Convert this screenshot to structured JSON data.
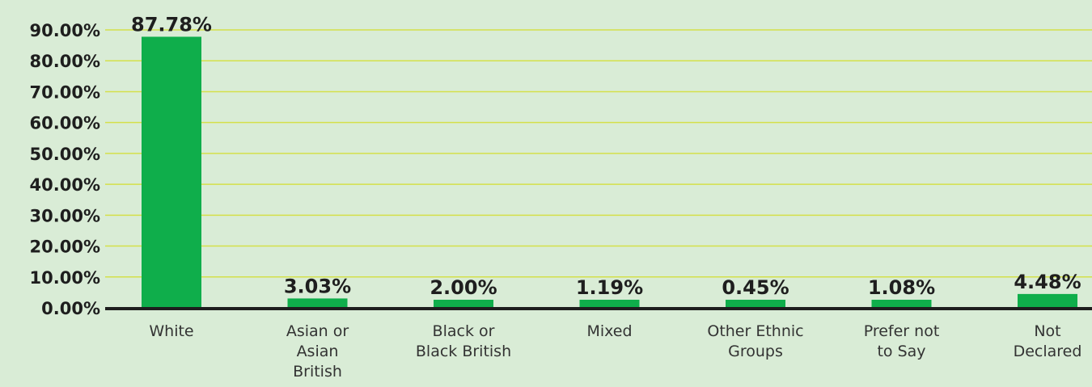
{
  "chart_data": {
    "type": "bar",
    "title": "",
    "xlabel": "",
    "ylabel": "",
    "categories": [
      "White",
      "Asian or Asian British",
      "Black or Black British",
      "Mixed",
      "Other Ethnic Groups",
      "Prefer not to Say",
      "Not Declared"
    ],
    "category_lines": [
      [
        "White"
      ],
      [
        "Asian or",
        "Asian",
        "British"
      ],
      [
        "Black or",
        "Black British"
      ],
      [
        "Mixed"
      ],
      [
        "Other Ethnic",
        "Groups"
      ],
      [
        "Prefer not",
        "to Say"
      ],
      [
        "Not",
        "Declared"
      ]
    ],
    "values": [
      87.78,
      3.03,
      2.0,
      1.19,
      0.45,
      1.08,
      4.48
    ],
    "data_labels": [
      "87.78%",
      "3.03%",
      "2.00%",
      "1.19%",
      "0.45%",
      "1.08%",
      "4.48%"
    ],
    "ylim": [
      0,
      90
    ],
    "yticks": [
      0,
      10,
      20,
      30,
      40,
      50,
      60,
      70,
      80,
      90
    ],
    "ytick_labels": [
      "0.00%",
      "10.00%",
      "20.00%",
      "30.00%",
      "40.00%",
      "50.00%",
      "60.00%",
      "70.00%",
      "80.00%",
      "90.00%"
    ],
    "grid": true,
    "legend": "none",
    "colors": {
      "background": "#d9ecd6",
      "bar": "#0fae4b",
      "grid": "#d4e04a",
      "axis": "#1e1e1e",
      "text": "#1e1e1e"
    }
  }
}
